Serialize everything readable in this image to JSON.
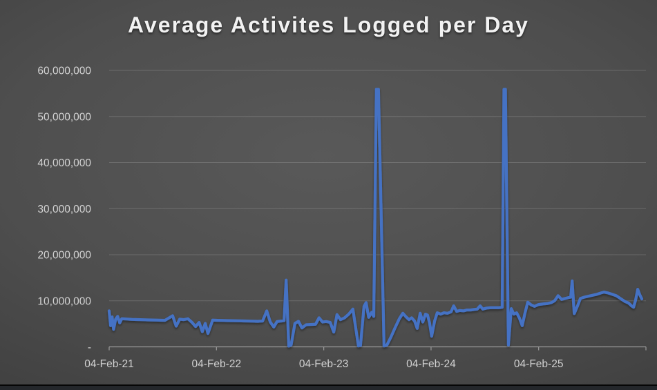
{
  "slide": {
    "title": "Average Activites Logged per Day"
  },
  "chart_data": {
    "type": "line",
    "title": "Average Activites Logged per Day",
    "legend": "none",
    "grid": "horizontal",
    "colors": {
      "line": "#4472C4",
      "gridline": "rgba(255,255,255,0.16)",
      "axis": "#9b9b9b",
      "label": "#d2d2d2",
      "title": "#f2f2f2"
    },
    "x_axis": {
      "start": "2021-02-04",
      "end": "2026-02-04",
      "ticks": [
        {
          "date": "2021-02-04",
          "label": "04-Feb-21"
        },
        {
          "date": "2022-02-04",
          "label": "04-Feb-22"
        },
        {
          "date": "2023-02-04",
          "label": "04-Feb-23"
        },
        {
          "date": "2024-02-04",
          "label": "04-Feb-24"
        },
        {
          "date": "2025-02-04",
          "label": "04-Feb-25"
        },
        {
          "date": "2026-02-04",
          "label": ""
        }
      ]
    },
    "y_axis": {
      "min": 0,
      "max": 60000000,
      "ticks": [
        {
          "value": 60000000,
          "label": "60,000,000"
        },
        {
          "value": 50000000,
          "label": "50,000,000"
        },
        {
          "value": 40000000,
          "label": "40,000,000"
        },
        {
          "value": 30000000,
          "label": "30,000,000"
        },
        {
          "value": 20000000,
          "label": "20,000,000"
        },
        {
          "value": 10000000,
          "label": "10,000,000"
        },
        {
          "value": 0,
          "label": "-"
        }
      ]
    },
    "series": [
      {
        "name": "Average Activities Logged per Day",
        "points": [
          [
            "2021-02-04",
            7800000
          ],
          [
            "2021-02-09",
            4600000
          ],
          [
            "2021-02-14",
            6500000
          ],
          [
            "2021-02-19",
            3800000
          ],
          [
            "2021-02-26",
            6000000
          ],
          [
            "2021-03-05",
            6600000
          ],
          [
            "2021-03-12",
            5200000
          ],
          [
            "2021-03-19",
            6100000
          ],
          [
            "2021-04-02",
            6050000
          ],
          [
            "2021-04-23",
            5950000
          ],
          [
            "2021-05-21",
            5900000
          ],
          [
            "2021-06-18",
            5850000
          ],
          [
            "2021-07-16",
            5800000
          ],
          [
            "2021-08-13",
            5750000
          ],
          [
            "2021-09-08",
            6750000
          ],
          [
            "2021-09-20",
            4500000
          ],
          [
            "2021-10-02",
            6000000
          ],
          [
            "2021-10-16",
            5900000
          ],
          [
            "2021-10-30",
            6100000
          ],
          [
            "2021-11-13",
            5300000
          ],
          [
            "2021-11-25",
            4400000
          ],
          [
            "2021-12-07",
            5300000
          ],
          [
            "2021-12-18",
            3300000
          ],
          [
            "2021-12-28",
            5100000
          ],
          [
            "2022-01-06",
            2900000
          ],
          [
            "2022-01-22",
            5800000
          ],
          [
            "2022-02-08",
            5750000
          ],
          [
            "2022-03-15",
            5700000
          ],
          [
            "2022-04-19",
            5650000
          ],
          [
            "2022-05-25",
            5600000
          ],
          [
            "2022-06-24",
            5550000
          ],
          [
            "2022-07-11",
            5600000
          ],
          [
            "2022-07-25",
            7800000
          ],
          [
            "2022-08-06",
            5400000
          ],
          [
            "2022-08-18",
            4300000
          ],
          [
            "2022-08-29",
            5500000
          ],
          [
            "2022-09-12",
            5600000
          ],
          [
            "2022-09-22",
            5700000
          ],
          [
            "2022-09-29",
            14500000
          ],
          [
            "2022-10-08",
            150000
          ],
          [
            "2022-10-16",
            400000
          ],
          [
            "2022-10-29",
            5100000
          ],
          [
            "2022-11-10",
            5550000
          ],
          [
            "2022-11-22",
            4100000
          ],
          [
            "2022-12-06",
            4800000
          ],
          [
            "2022-12-22",
            4850000
          ],
          [
            "2023-01-07",
            4900000
          ],
          [
            "2023-01-19",
            6300000
          ],
          [
            "2023-01-31",
            5400000
          ],
          [
            "2023-02-12",
            5500000
          ],
          [
            "2023-02-26",
            5300000
          ],
          [
            "2023-03-10",
            3200000
          ],
          [
            "2023-03-21",
            7000000
          ],
          [
            "2023-04-02",
            5900000
          ],
          [
            "2023-04-16",
            6300000
          ],
          [
            "2023-04-30",
            7100000
          ],
          [
            "2023-05-14",
            8200000
          ],
          [
            "2023-06-02",
            200000
          ],
          [
            "2023-06-09",
            300000
          ],
          [
            "2023-06-21",
            8800000
          ],
          [
            "2023-06-28",
            9600000
          ],
          [
            "2023-07-07",
            6400000
          ],
          [
            "2023-07-17",
            7500000
          ],
          [
            "2023-07-24",
            6600000
          ],
          [
            "2023-08-02",
            55900000
          ],
          [
            "2023-08-09",
            55900000
          ],
          [
            "2023-08-28",
            200000
          ],
          [
            "2023-09-07",
            400000
          ],
          [
            "2023-09-21",
            2200000
          ],
          [
            "2023-10-05",
            4200000
          ],
          [
            "2023-10-19",
            6100000
          ],
          [
            "2023-10-31",
            7300000
          ],
          [
            "2023-11-11",
            6500000
          ],
          [
            "2023-11-21",
            5900000
          ],
          [
            "2023-11-30",
            6300000
          ],
          [
            "2023-12-10",
            5600000
          ],
          [
            "2023-12-19",
            4000000
          ],
          [
            "2023-12-29",
            7300000
          ],
          [
            "2024-01-07",
            5400000
          ],
          [
            "2024-01-16",
            7100000
          ],
          [
            "2024-01-23",
            6900000
          ],
          [
            "2024-01-30",
            5200000
          ],
          [
            "2024-02-06",
            2300000
          ],
          [
            "2024-02-16",
            5600000
          ],
          [
            "2024-02-25",
            7400000
          ],
          [
            "2024-03-08",
            7100000
          ],
          [
            "2024-03-19",
            7400000
          ],
          [
            "2024-03-31",
            7300000
          ],
          [
            "2024-04-12",
            7600000
          ],
          [
            "2024-04-21",
            8900000
          ],
          [
            "2024-05-01",
            7700000
          ],
          [
            "2024-05-12",
            7900000
          ],
          [
            "2024-05-24",
            7800000
          ],
          [
            "2024-06-05",
            8000000
          ],
          [
            "2024-06-17",
            8000000
          ],
          [
            "2024-06-29",
            8100000
          ],
          [
            "2024-07-10",
            8200000
          ],
          [
            "2024-07-20",
            8900000
          ],
          [
            "2024-07-29",
            8200000
          ],
          [
            "2024-08-10",
            8400000
          ],
          [
            "2024-08-24",
            8500000
          ],
          [
            "2024-09-07",
            8500000
          ],
          [
            "2024-09-21",
            8500000
          ],
          [
            "2024-10-03",
            8600000
          ],
          [
            "2024-10-09",
            55900000
          ],
          [
            "2024-10-14",
            55900000
          ],
          [
            "2024-10-24",
            400000
          ],
          [
            "2024-11-03",
            8300000
          ],
          [
            "2024-11-12",
            7100000
          ],
          [
            "2024-11-21",
            7400000
          ],
          [
            "2024-12-01",
            6200000
          ],
          [
            "2024-12-10",
            4600000
          ],
          [
            "2024-12-19",
            7200000
          ],
          [
            "2024-12-29",
            9700000
          ],
          [
            "2025-01-10",
            9100000
          ],
          [
            "2025-01-21",
            8800000
          ],
          [
            "2025-02-04",
            9200000
          ],
          [
            "2025-02-18",
            9300000
          ],
          [
            "2025-03-05",
            9400000
          ],
          [
            "2025-03-19",
            9600000
          ],
          [
            "2025-03-30",
            10000000
          ],
          [
            "2025-04-11",
            11100000
          ],
          [
            "2025-04-23",
            10300000
          ],
          [
            "2025-05-05",
            10500000
          ],
          [
            "2025-05-17",
            10700000
          ],
          [
            "2025-05-24",
            10800000
          ],
          [
            "2025-05-29",
            14300000
          ],
          [
            "2025-06-05",
            7200000
          ],
          [
            "2025-06-17",
            9000000
          ],
          [
            "2025-06-26",
            10500000
          ],
          [
            "2025-07-10",
            10800000
          ],
          [
            "2025-07-24",
            11000000
          ],
          [
            "2025-08-07",
            11200000
          ],
          [
            "2025-08-21",
            11400000
          ],
          [
            "2025-09-04",
            11700000
          ],
          [
            "2025-09-14",
            11900000
          ],
          [
            "2025-09-28",
            11700000
          ],
          [
            "2025-10-12",
            11400000
          ],
          [
            "2025-10-26",
            11100000
          ],
          [
            "2025-11-09",
            10500000
          ],
          [
            "2025-11-23",
            9900000
          ],
          [
            "2025-12-07",
            9500000
          ],
          [
            "2025-12-17",
            8900000
          ],
          [
            "2025-12-24",
            8600000
          ],
          [
            "2025-12-31",
            10200000
          ],
          [
            "2026-01-07",
            12500000
          ],
          [
            "2026-01-14",
            11300000
          ],
          [
            "2026-01-21",
            10400000
          ]
        ]
      }
    ]
  }
}
